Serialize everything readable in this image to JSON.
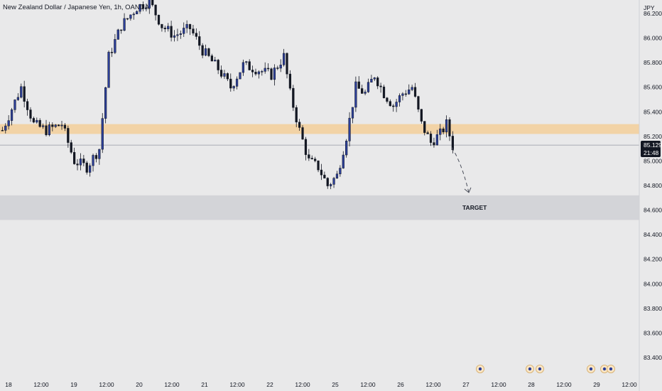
{
  "header": {
    "title": "New Zealand Dollar / Japanese Yen, 1h, OANDA"
  },
  "colors": {
    "background": "#e9e9ea",
    "candle_up": "#2c3f99",
    "candle_down": "#131722",
    "resistance_zone": "#f2d3a6",
    "target_zone": "#d3d4d8",
    "current_price_line": "#9598a1",
    "price_tag_bg": "#131722"
  },
  "target_label": "TARGET",
  "price_tag": {
    "price": "85.129",
    "countdown": "21:48"
  },
  "event_icons": [
    "event-marker-icon",
    "event-marker-icon",
    "event-marker-icon",
    "event-marker-icon",
    "event-marker-icon"
  ],
  "chart_data": {
    "type": "candlestick",
    "currency": "JPY",
    "ylim": [
      83.3,
      86.25
    ],
    "y_ticks": [
      "86.200",
      "86.000",
      "85.800",
      "85.600",
      "85.400",
      "85.200",
      "85.000",
      "84.800",
      "84.600",
      "84.400",
      "84.200",
      "84.000",
      "83.800",
      "83.600",
      "83.400"
    ],
    "x_ticks": [
      "18",
      "12:00",
      "19",
      "12:00",
      "20",
      "12:00",
      "21",
      "12:00",
      "22",
      "12:00",
      "25",
      "12:00",
      "26",
      "12:00",
      "27",
      "12:00",
      "28",
      "12:00",
      "29",
      "12:00"
    ],
    "resistance_zone": [
      85.22,
      85.3
    ],
    "target_zone": [
      84.52,
      84.72
    ],
    "current_price": 85.129,
    "projection": {
      "from": 85.11,
      "to": 84.72
    },
    "close_path": [
      [
        0,
        85.25
      ],
      [
        6,
        85.6
      ],
      [
        10,
        85.3
      ],
      [
        14,
        85.25
      ],
      [
        19,
        85.3
      ],
      [
        23,
        85.0
      ],
      [
        27,
        84.95
      ],
      [
        31,
        85.1
      ],
      [
        34,
        85.85
      ],
      [
        38,
        86.1
      ],
      [
        43,
        86.25
      ],
      [
        47,
        86.3
      ],
      [
        51,
        86.1
      ],
      [
        55,
        86.02
      ],
      [
        60,
        86.08
      ],
      [
        64,
        85.9
      ],
      [
        69,
        85.75
      ],
      [
        73,
        85.6
      ],
      [
        77,
        85.78
      ],
      [
        81,
        85.75
      ],
      [
        86,
        85.7
      ],
      [
        90,
        85.85
      ],
      [
        92,
        85.55
      ],
      [
        95,
        85.25
      ],
      [
        98,
        85.0
      ],
      [
        101,
        84.95
      ],
      [
        104,
        84.8
      ],
      [
        107,
        84.88
      ],
      [
        110,
        85.2
      ],
      [
        113,
        85.6
      ],
      [
        116,
        85.55
      ],
      [
        119,
        85.7
      ],
      [
        122,
        85.55
      ],
      [
        125,
        85.45
      ],
      [
        128,
        85.55
      ],
      [
        131,
        85.6
      ],
      [
        134,
        85.3
      ],
      [
        137,
        85.15
      ],
      [
        140,
        85.22
      ],
      [
        142,
        85.3
      ],
      [
        144,
        85.12
      ]
    ]
  }
}
